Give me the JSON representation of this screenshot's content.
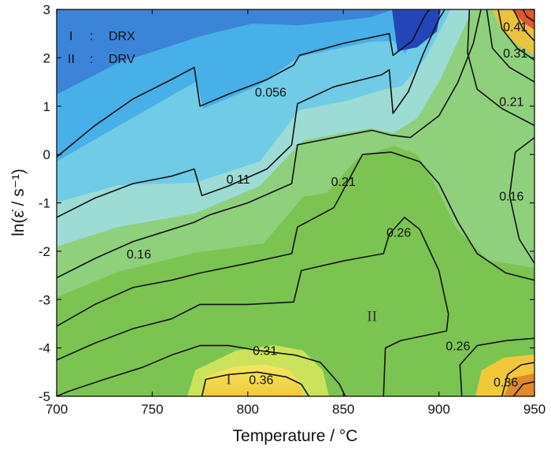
{
  "chart_data": {
    "type": "contour",
    "xlabel": "Temperature / °C",
    "ylabel": "ln(ε̇ / s⁻¹)",
    "xlim": [
      700,
      950
    ],
    "ylim": [
      -5,
      3
    ],
    "x_ticks": [
      700,
      750,
      800,
      850,
      900,
      950
    ],
    "y_ticks": [
      -5,
      -4,
      -3,
      -2,
      -1,
      0,
      1,
      2,
      3
    ],
    "legend": [
      {
        "symbol": "I",
        "sep": ":",
        "label": "DRX"
      },
      {
        "symbol": "II",
        "sep": ":",
        "label": "DRV"
      }
    ],
    "region_labels": [
      {
        "text": "I",
        "x": 790,
        "y": -4.65
      },
      {
        "text": "II",
        "x": 865,
        "y": -3.35
      }
    ],
    "contour_labels": [
      {
        "text": "0.056",
        "x": 812,
        "y": 1.3
      },
      {
        "text": "0.11",
        "x": 795,
        "y": -0.5
      },
      {
        "text": "0.16",
        "x": 743,
        "y": -2.05
      },
      {
        "text": "0.21",
        "x": 850,
        "y": -0.55
      },
      {
        "text": "0.26",
        "x": 879,
        "y": -1.6
      },
      {
        "text": "0.31",
        "x": 809,
        "y": -4.05
      },
      {
        "text": "0.36",
        "x": 807,
        "y": -4.65
      },
      {
        "text": "0.41",
        "x": 940,
        "y": 2.65
      },
      {
        "text": "0.31",
        "x": 940,
        "y": 2.1
      },
      {
        "text": "0.21",
        "x": 938,
        "y": 1.1
      },
      {
        "text": "0.16",
        "x": 938,
        "y": -0.85
      },
      {
        "text": "0.26",
        "x": 910,
        "y": -3.95
      },
      {
        "text": "0.36",
        "x": 935,
        "y": -4.7
      }
    ],
    "contour_lines": [
      {
        "level": "0.056",
        "points": [
          [
            700,
            -0.05
          ],
          [
            720,
            0.6
          ],
          [
            740,
            1.15
          ],
          [
            760,
            1.55
          ],
          [
            772,
            1.8
          ],
          [
            775,
            1.0
          ],
          [
            790,
            1.25
          ],
          [
            810,
            1.55
          ],
          [
            824,
            1.85
          ],
          [
            827,
            2.05
          ],
          [
            850,
            2.3
          ],
          [
            874,
            2.5
          ],
          [
            876,
            2.05
          ],
          [
            886,
            2.35
          ],
          [
            893,
            2.9
          ],
          [
            895,
            3.0
          ]
        ]
      },
      {
        "level": "0.11",
        "points": [
          [
            700,
            -1.3
          ],
          [
            720,
            -0.9
          ],
          [
            740,
            -0.6
          ],
          [
            760,
            -0.45
          ],
          [
            772,
            -0.3
          ],
          [
            776,
            -0.85
          ],
          [
            790,
            -0.65
          ],
          [
            810,
            -0.3
          ],
          [
            823,
            0.2
          ],
          [
            826,
            1.05
          ],
          [
            845,
            1.4
          ],
          [
            870,
            1.65
          ],
          [
            874,
            1.75
          ],
          [
            876,
            0.85
          ],
          [
            884,
            1.3
          ],
          [
            892,
            2.1
          ],
          [
            900,
            2.8
          ],
          [
            903,
            3.0
          ]
        ]
      },
      {
        "level": "0.16",
        "points": [
          [
            700,
            -2.55
          ],
          [
            720,
            -2.15
          ],
          [
            740,
            -1.8
          ],
          [
            760,
            -1.55
          ],
          [
            772,
            -1.4
          ],
          [
            780,
            -1.25
          ],
          [
            800,
            -1.0
          ],
          [
            823,
            -0.6
          ],
          [
            826,
            0.2
          ],
          [
            845,
            0.35
          ],
          [
            865,
            0.5
          ],
          [
            875,
            0.4
          ],
          [
            885,
            0.35
          ],
          [
            900,
            0.8
          ],
          [
            910,
            1.5
          ],
          [
            918,
            2.3
          ],
          [
            922,
            3.0
          ]
        ]
      },
      {
        "level": "0.21",
        "points": [
          [
            700,
            -3.55
          ],
          [
            720,
            -3.1
          ],
          [
            740,
            -2.75
          ],
          [
            760,
            -2.6
          ],
          [
            775,
            -2.45
          ],
          [
            800,
            -2.25
          ],
          [
            823,
            -2.05
          ],
          [
            826,
            -1.5
          ],
          [
            845,
            -1.1
          ],
          [
            860,
            0.0
          ],
          [
            875,
            0.05
          ],
          [
            890,
            -0.15
          ],
          [
            900,
            -0.6
          ],
          [
            910,
            -1.4
          ],
          [
            920,
            -2.05
          ],
          [
            935,
            -2.45
          ],
          [
            950,
            -2.6
          ]
        ]
      },
      {
        "level": "0.26",
        "points": [
          [
            700,
            -4.25
          ],
          [
            720,
            -3.9
          ],
          [
            740,
            -3.6
          ],
          [
            760,
            -3.4
          ],
          [
            775,
            -3.1
          ],
          [
            800,
            -3.1
          ],
          [
            824,
            -3.05
          ],
          [
            828,
            -2.4
          ],
          [
            850,
            -2.2
          ],
          [
            871,
            -2.05
          ],
          [
            874,
            -1.65
          ],
          [
            882,
            -1.3
          ],
          [
            890,
            -1.55
          ],
          [
            900,
            -2.4
          ],
          [
            905,
            -3.3
          ],
          [
            904,
            -3.65
          ],
          [
            880,
            -3.85
          ],
          [
            872,
            -4.0
          ],
          [
            871,
            -5.0
          ]
        ]
      },
      {
        "level": "0.31",
        "points": [
          [
            700,
            -5.0
          ],
          [
            706,
            -4.9
          ],
          [
            725,
            -4.65
          ],
          [
            745,
            -4.4
          ],
          [
            760,
            -4.15
          ],
          [
            775,
            -3.95
          ],
          [
            790,
            -3.95
          ],
          [
            805,
            -4.05
          ],
          [
            815,
            -4.1
          ],
          [
            825,
            -4.15
          ],
          [
            838,
            -4.3
          ],
          [
            848,
            -4.75
          ],
          [
            851,
            -5.0
          ]
        ]
      },
      {
        "level": "0.36",
        "points": [
          [
            776,
            -5.0
          ],
          [
            778,
            -4.65
          ],
          [
            790,
            -4.55
          ],
          [
            805,
            -4.5
          ],
          [
            820,
            -4.6
          ],
          [
            828,
            -4.75
          ],
          [
            832,
            -5.0
          ]
        ]
      },
      {
        "level": "0.26b",
        "points": [
          [
            912,
            -5.0
          ],
          [
            911,
            -4.35
          ],
          [
            920,
            -3.95
          ],
          [
            935,
            -3.85
          ],
          [
            950,
            -3.8
          ]
        ]
      },
      {
        "level": "0.31b",
        "points": [
          [
            933,
            -5.0
          ],
          [
            936,
            -4.55
          ],
          [
            943,
            -4.35
          ],
          [
            950,
            -4.3
          ]
        ]
      },
      {
        "level": "0.36b",
        "points": [
          [
            939,
            -5.0
          ],
          [
            944,
            -4.75
          ],
          [
            950,
            -4.7
          ]
        ]
      },
      {
        "level": "0.16b",
        "points": [
          [
            950,
            -2.25
          ],
          [
            942,
            -1.75
          ],
          [
            937,
            -0.85
          ],
          [
            940,
            0.05
          ],
          [
            950,
            0.35
          ]
        ]
      },
      {
        "level": "0.21b",
        "points": [
          [
            950,
            0.6
          ],
          [
            933,
            0.95
          ],
          [
            920,
            1.35
          ],
          [
            915,
            2.1
          ],
          [
            916,
            3.0
          ]
        ]
      },
      {
        "level": "0.26c",
        "points": [
          [
            950,
            1.5
          ],
          [
            937,
            1.8
          ],
          [
            928,
            2.2
          ],
          [
            925,
            3.0
          ]
        ]
      },
      {
        "level": "0.31c",
        "points": [
          [
            950,
            1.95
          ],
          [
            941,
            2.2
          ],
          [
            933,
            2.6
          ],
          [
            931,
            3.0
          ]
        ]
      },
      {
        "level": "0.36c",
        "points": [
          [
            950,
            2.35
          ],
          [
            944,
            2.6
          ],
          [
            939,
            3.0
          ]
        ]
      },
      {
        "level": "0.41",
        "points": [
          [
            950,
            2.75
          ],
          [
            946,
            2.85
          ],
          [
            944,
            3.0
          ]
        ]
      }
    ]
  }
}
